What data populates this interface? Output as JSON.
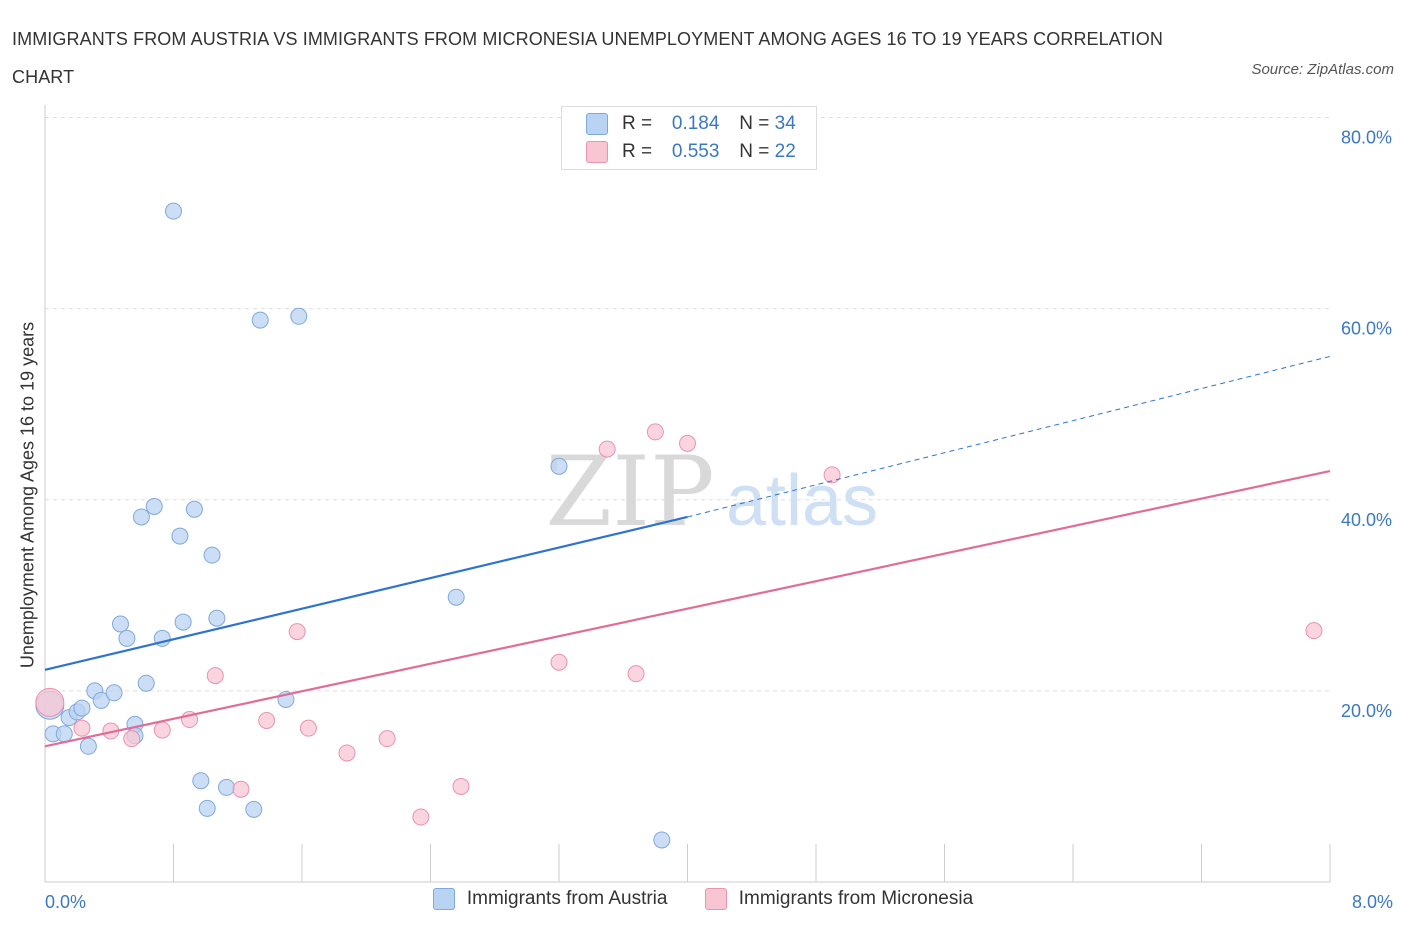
{
  "title": "IMMIGRANTS FROM AUSTRIA VS IMMIGRANTS FROM MICRONESIA UNEMPLOYMENT AMONG AGES 16 TO 19 YEARS CORRELATION CHART",
  "source": "Source: ZipAtlas.com",
  "watermark": {
    "zip": "ZIP",
    "atlas": "atlas"
  },
  "legend_top": [
    {
      "r_label": "R =",
      "r_value": "0.184",
      "n_label": "N =",
      "n_value": "34"
    },
    {
      "r_label": "R =",
      "r_value": "0.553",
      "n_label": "N =",
      "n_value": "22"
    }
  ],
  "colors": {
    "austria_fill": "#b9d3f3",
    "austria_stroke": "#7fa9db",
    "austria_line": "#2e73cf",
    "micronesia_fill": "#f8c5d3",
    "micronesia_stroke": "#e993ae",
    "micronesia_line": "#e06c97",
    "axis_text": "#3b78c4",
    "grid": "#dddddd"
  },
  "chart_data": {
    "type": "scatter",
    "title": "IMMIGRANTS FROM AUSTRIA VS IMMIGRANTS FROM MICRONESIA UNEMPLOYMENT AMONG AGES 16 TO 19 YEARS CORRELATION CHART",
    "xlabel": "",
    "ylabel": "Unemployment Among Ages 16 to 19 years",
    "xlim": [
      0,
      8
    ],
    "ylim": [
      0,
      80
    ],
    "x_tick_labels": [
      "0.0%",
      "8.0%"
    ],
    "y_ticks": [
      20,
      40,
      60,
      80
    ],
    "y_tick_labels": [
      "20.0%",
      "40.0%",
      "60.0%",
      "80.0%"
    ],
    "grid": true,
    "legend_position": "bottom",
    "series": [
      {
        "name": "Immigrants from Austria",
        "points": [
          [
            0.03,
            18.5
          ],
          [
            0.05,
            15.5
          ],
          [
            0.12,
            15.5
          ],
          [
            0.15,
            17.2
          ],
          [
            0.2,
            17.8
          ],
          [
            0.23,
            18.2
          ],
          [
            0.27,
            14.2
          ],
          [
            0.31,
            20.0
          ],
          [
            0.35,
            19.0
          ],
          [
            0.43,
            19.8
          ],
          [
            0.47,
            27.0
          ],
          [
            0.51,
            25.5
          ],
          [
            0.56,
            16.5
          ],
          [
            0.56,
            15.3
          ],
          [
            0.6,
            38.2
          ],
          [
            0.63,
            20.8
          ],
          [
            0.68,
            39.3
          ],
          [
            0.73,
            25.5
          ],
          [
            0.8,
            70.2
          ],
          [
            0.84,
            36.2
          ],
          [
            0.86,
            27.2
          ],
          [
            0.93,
            39.0
          ],
          [
            0.97,
            10.6
          ],
          [
            1.01,
            7.7
          ],
          [
            1.04,
            34.2
          ],
          [
            1.07,
            27.6
          ],
          [
            1.13,
            9.9
          ],
          [
            1.3,
            7.6
          ],
          [
            1.34,
            58.8
          ],
          [
            1.5,
            19.1
          ],
          [
            1.58,
            59.2
          ],
          [
            2.56,
            29.8
          ],
          [
            3.2,
            43.5
          ],
          [
            3.84,
            4.4
          ]
        ],
        "trend": {
          "x": [
            0,
            4
          ],
          "y": [
            22.2,
            38.2
          ],
          "dashed_extension": {
            "x": [
              4,
              8
            ],
            "y": [
              38.2,
              55.0
            ]
          }
        }
      },
      {
        "name": "Immigrants from Micronesia",
        "points": [
          [
            0.03,
            18.8
          ],
          [
            0.23,
            16.1
          ],
          [
            0.41,
            15.8
          ],
          [
            0.54,
            15.0
          ],
          [
            0.73,
            15.9
          ],
          [
            0.9,
            17.0
          ],
          [
            1.06,
            21.6
          ],
          [
            1.22,
            9.7
          ],
          [
            1.38,
            16.9
          ],
          [
            1.57,
            26.2
          ],
          [
            1.64,
            16.1
          ],
          [
            1.88,
            13.5
          ],
          [
            2.13,
            15.0
          ],
          [
            2.34,
            6.8
          ],
          [
            2.59,
            10.0
          ],
          [
            3.2,
            23.0
          ],
          [
            3.5,
            45.3
          ],
          [
            3.68,
            21.8
          ],
          [
            3.8,
            47.1
          ],
          [
            4.0,
            45.9
          ],
          [
            4.9,
            42.6
          ],
          [
            7.9,
            26.3
          ]
        ],
        "trend": {
          "x": [
            0,
            8
          ],
          "y": [
            14.2,
            43.0
          ]
        }
      }
    ]
  }
}
